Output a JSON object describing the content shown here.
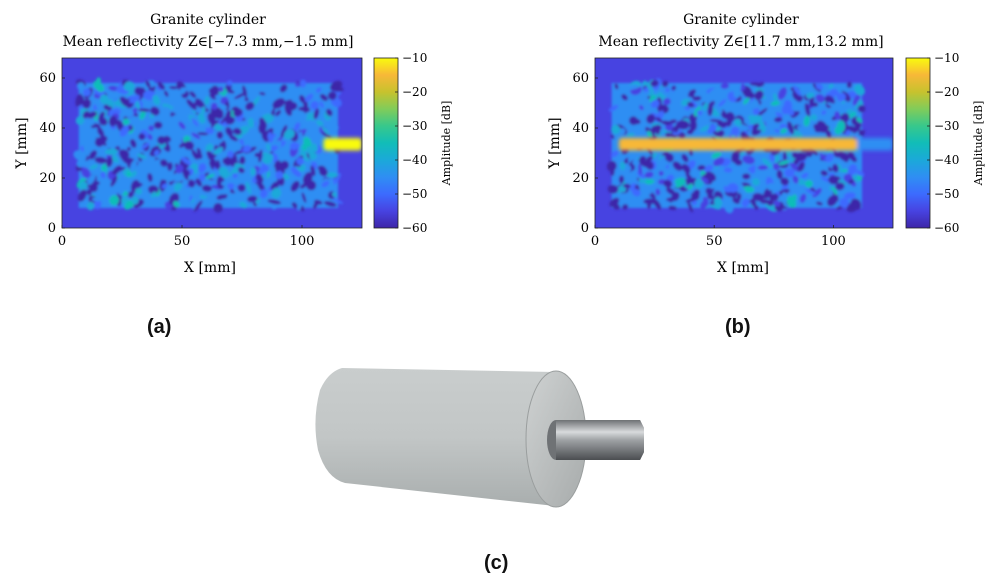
{
  "chart_data": [
    {
      "type": "heatmap",
      "id": "a",
      "title": "Granite cylinder",
      "subtitle": "Mean reflectivity Z∈[−7.3 mm,−1.5 mm]",
      "xlabel": "X [mm]",
      "ylabel": "Y [mm]",
      "xlim": [
        0,
        125
      ],
      "ylim": [
        0,
        68
      ],
      "xticks": [
        "0",
        "50",
        "100"
      ],
      "yticks": [
        "0",
        "20",
        "40",
        "60"
      ],
      "colorbar": {
        "label": "Amplitude [dB]",
        "range": [
          -60,
          -10
        ],
        "ticks": [
          "−10",
          "−20",
          "−30",
          "−40",
          "−50",
          "−60"
        ]
      },
      "features": [
        {
          "kind": "granular-speckle",
          "x": [
            7,
            115
          ],
          "y": [
            8,
            58
          ],
          "level_db": [
            -55,
            -38
          ]
        },
        {
          "kind": "bright-band",
          "x": [
            109,
            125
          ],
          "y": [
            31,
            36
          ],
          "level_db": -11
        }
      ],
      "caption": "(a)"
    },
    {
      "type": "heatmap",
      "id": "b",
      "title": "Granite cylinder",
      "subtitle": "Mean reflectivity Z∈[11.7 mm,13.2 mm]",
      "xlabel": "X [mm]",
      "ylabel": "Y [mm]",
      "xlim": [
        0,
        125
      ],
      "ylim": [
        0,
        68
      ],
      "xticks": [
        "0",
        "50",
        "100"
      ],
      "yticks": [
        "0",
        "20",
        "40",
        "60"
      ],
      "colorbar": {
        "label": "Amplitude [dB]",
        "range": [
          -60,
          -10
        ],
        "ticks": [
          "−10",
          "−20",
          "−30",
          "−40",
          "−50",
          "−60"
        ]
      },
      "features": [
        {
          "kind": "granular-speckle",
          "x": [
            7,
            112
          ],
          "y": [
            8,
            58
          ],
          "level_db": [
            -55,
            -38
          ]
        },
        {
          "kind": "bright-band",
          "x": [
            10,
            110
          ],
          "y": [
            31,
            36
          ],
          "level_db": -18
        },
        {
          "kind": "faint-band",
          "x": [
            110,
            125
          ],
          "y": [
            31,
            36
          ],
          "level_db": -45
        }
      ],
      "caption": "(b)"
    }
  ],
  "photo": {
    "caption": "(c)",
    "colors": {
      "granite": "#c4c8c8",
      "granite_shadow": "#9ea3a3",
      "shaft": "#8a8d90"
    }
  },
  "colormap": [
    "#3e26a8",
    "#4743e1",
    "#3c6bfe",
    "#2f8ef3",
    "#1ba9d9",
    "#11bdb8",
    "#37c88c",
    "#81cc5a",
    "#c7c22e",
    "#f7b838",
    "#f9d529",
    "#f9fb0e"
  ]
}
